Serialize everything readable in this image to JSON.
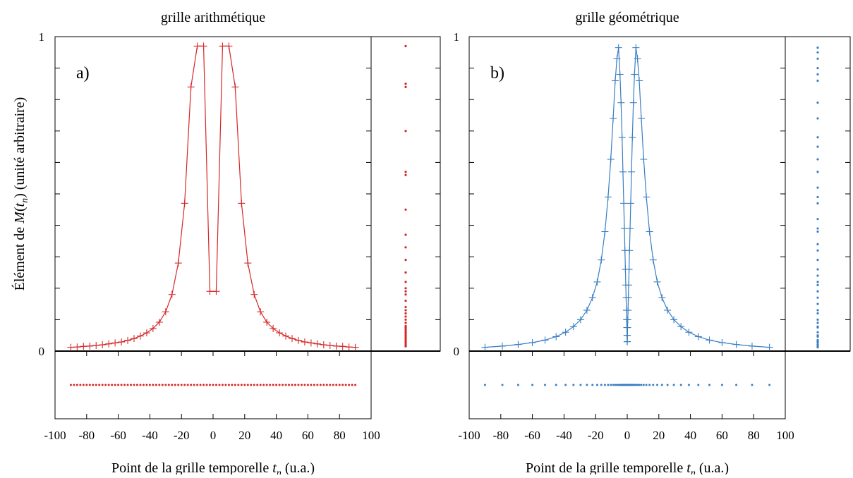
{
  "chart_data": [
    {
      "type": "line",
      "panel_tag": "a)",
      "title": "grille arithmétique",
      "xlabel": "Point de la grille temporelle t_n (u.a.)",
      "ylabel": "Élément de M(t_n) (unité arbitraire)",
      "xlim": [
        -100,
        100
      ],
      "ylim": [
        0,
        1
      ],
      "x_ticks": [
        -100,
        -80,
        -60,
        -40,
        -20,
        0,
        20,
        40,
        60,
        80,
        100
      ],
      "y_ticks": [
        0,
        1
      ],
      "y_tick_labels": [
        "0",
        "1"
      ],
      "color": "#d62728",
      "marker": "plus",
      "grid": "arithmetic",
      "grid_x_min": -90,
      "grid_x_max": 90,
      "grid_points": 91,
      "series": [
        {
          "x": [
            -90,
            -86,
            -82,
            -78,
            -74,
            -70,
            -66,
            -62,
            -58,
            -54,
            -50,
            -46,
            -42,
            -38,
            -34,
            -30,
            -26,
            -22,
            -18,
            -14,
            -10,
            -6,
            -2,
            2,
            6,
            10,
            14,
            18,
            22,
            26,
            30,
            34,
            38,
            42,
            46,
            50,
            54,
            58,
            62,
            66,
            70,
            74,
            78,
            82,
            86,
            90
          ],
          "y": [
            0.012,
            0.013,
            0.015,
            0.016,
            0.018,
            0.02,
            0.023,
            0.026,
            0.029,
            0.034,
            0.04,
            0.048,
            0.058,
            0.072,
            0.092,
            0.125,
            0.18,
            0.28,
            0.47,
            0.84,
            0.97,
            0.97,
            0.19,
            0.19,
            0.97,
            0.97,
            0.84,
            0.47,
            0.28,
            0.18,
            0.125,
            0.092,
            0.072,
            0.058,
            0.048,
            0.04,
            0.034,
            0.029,
            0.026,
            0.023,
            0.02,
            0.018,
            0.016,
            0.015,
            0.013,
            0.012
          ]
        }
      ],
      "side_distribution_y": [
        0.97,
        0.85,
        0.84,
        0.7,
        0.57,
        0.56,
        0.45,
        0.37,
        0.33,
        0.29,
        0.25,
        0.22,
        0.2,
        0.19,
        0.18,
        0.16,
        0.14,
        0.13,
        0.12,
        0.11,
        0.1,
        0.09,
        0.08,
        0.075,
        0.07,
        0.065,
        0.06,
        0.055,
        0.05,
        0.045,
        0.04,
        0.035,
        0.03,
        0.025,
        0.02,
        0.015
      ]
    },
    {
      "type": "line",
      "panel_tag": "b)",
      "title": "grille géométrique",
      "xlabel": "Point de la grille temporelle t_n (u.a.)",
      "xlim": [
        -100,
        100
      ],
      "ylim": [
        0,
        1
      ],
      "x_ticks": [
        -100,
        -80,
        -60,
        -40,
        -20,
        0,
        20,
        40,
        60,
        80,
        100
      ],
      "y_ticks": [
        0,
        1
      ],
      "y_tick_labels": [
        "0",
        "1"
      ],
      "color": "#3a7fc1",
      "marker": "plus",
      "grid": "geometric",
      "grid_x": [
        -90,
        -79,
        -69,
        -60,
        -52,
        -45,
        -39,
        -34,
        -29.5,
        -25.5,
        -22,
        -19,
        -16.4,
        -14.1,
        -12.1,
        -10.4,
        -8.9,
        -7.6,
        -6.5,
        -5.5,
        -4.6,
        -3.9,
        -3.25,
        -2.7,
        -2.2,
        -1.8,
        -1.45,
        -1.15,
        -0.9,
        -0.7,
        -0.5,
        -0.35,
        -0.22,
        -0.12,
        -0.05,
        0.05,
        0.12,
        0.22,
        0.35,
        0.5,
        0.7,
        0.9,
        1.15,
        1.45,
        1.8,
        2.2,
        2.7,
        3.25,
        3.9,
        4.6,
        5.5,
        6.5,
        7.6,
        8.9,
        10.4,
        12.1,
        14.1,
        16.4,
        19,
        22,
        25.5,
        29.5,
        34,
        39,
        45,
        52,
        60,
        69,
        79,
        90
      ],
      "series": [
        {
          "x": [
            -90,
            -79,
            -69,
            -60,
            -52,
            -45,
            -39,
            -34,
            -29.5,
            -25.5,
            -22,
            -19,
            -16.4,
            -14.1,
            -12.1,
            -10.4,
            -8.9,
            -7.6,
            -6.5,
            -5.5,
            -4.6,
            -3.9,
            -3.25,
            -2.7,
            -2.2,
            -1.8,
            -1.45,
            -1.15,
            -0.9,
            -0.7,
            -0.5,
            -0.35,
            -0.22,
            -0.12,
            -0.05,
            0.05,
            0.12,
            0.22,
            0.35,
            0.5,
            0.7,
            0.9,
            1.15,
            1.45,
            1.8,
            2.2,
            2.7,
            3.25,
            3.9,
            4.6,
            5.5,
            6.5,
            7.6,
            8.9,
            10.4,
            12.1,
            14.1,
            16.4,
            19,
            22,
            25.5,
            29.5,
            34,
            39,
            45,
            52,
            60,
            69,
            79,
            90
          ],
          "y": [
            0.012,
            0.016,
            0.021,
            0.027,
            0.035,
            0.046,
            0.06,
            0.078,
            0.1,
            0.13,
            0.17,
            0.22,
            0.29,
            0.38,
            0.49,
            0.61,
            0.74,
            0.86,
            0.93,
            0.965,
            0.88,
            0.79,
            0.68,
            0.57,
            0.47,
            0.39,
            0.32,
            0.26,
            0.21,
            0.17,
            0.13,
            0.1,
            0.075,
            0.05,
            0.03,
            0.03,
            0.05,
            0.075,
            0.1,
            0.13,
            0.17,
            0.21,
            0.26,
            0.32,
            0.39,
            0.47,
            0.57,
            0.68,
            0.79,
            0.88,
            0.965,
            0.93,
            0.86,
            0.74,
            0.61,
            0.49,
            0.38,
            0.29,
            0.22,
            0.17,
            0.13,
            0.1,
            0.078,
            0.06,
            0.046,
            0.035,
            0.027,
            0.021,
            0.016,
            0.012
          ]
        }
      ],
      "side_distribution_y": [
        0.965,
        0.95,
        0.93,
        0.9,
        0.88,
        0.86,
        0.79,
        0.74,
        0.68,
        0.65,
        0.61,
        0.57,
        0.52,
        0.49,
        0.47,
        0.42,
        0.39,
        0.38,
        0.34,
        0.32,
        0.29,
        0.26,
        0.24,
        0.22,
        0.21,
        0.19,
        0.17,
        0.15,
        0.13,
        0.12,
        0.1,
        0.09,
        0.078,
        0.075,
        0.06,
        0.05,
        0.046,
        0.035,
        0.03,
        0.027,
        0.021,
        0.016,
        0.012
      ]
    }
  ]
}
